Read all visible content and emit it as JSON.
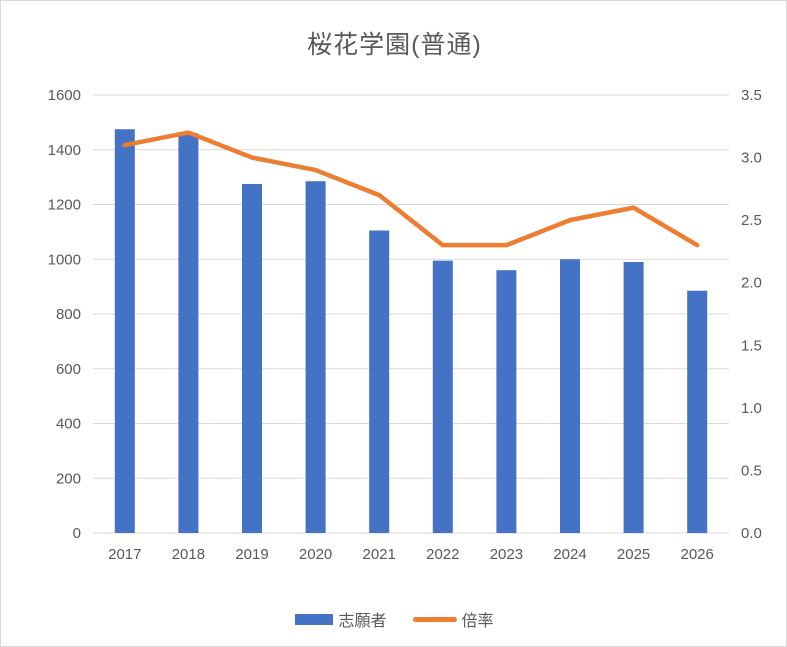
{
  "title": "桜花学園(普通)",
  "colors": {
    "bar": "#4472C4",
    "line": "#ED7D31",
    "grid": "#D9D9D9",
    "text": "#595959",
    "background": "#FFFFFF",
    "border": "#D9D9D9"
  },
  "legend": {
    "items": [
      {
        "label": "志願者",
        "type": "bar",
        "color": "#4472C4"
      },
      {
        "label": "倍率",
        "type": "line",
        "color": "#ED7D31"
      }
    ]
  },
  "chart_data": {
    "type": "bar+line",
    "title": "桜花学園(普通)",
    "categories": [
      "2017",
      "2018",
      "2019",
      "2020",
      "2021",
      "2022",
      "2023",
      "2024",
      "2025",
      "2026"
    ],
    "series": [
      {
        "name": "志願者",
        "type": "bar",
        "axis": "left",
        "color": "#4472C4",
        "values": [
          1475,
          1460,
          1275,
          1285,
          1105,
          995,
          960,
          1000,
          990,
          885
        ]
      },
      {
        "name": "倍率",
        "type": "line",
        "axis": "right",
        "color": "#ED7D31",
        "values": [
          3.1,
          3.2,
          3.0,
          2.9,
          2.7,
          2.3,
          2.3,
          2.5,
          2.6,
          2.3
        ]
      }
    ],
    "left_axis": {
      "min": 0,
      "max": 1600,
      "step": 200,
      "tick_labels": [
        "0",
        "200",
        "400",
        "600",
        "800",
        "1000",
        "1200",
        "1400",
        "1600"
      ]
    },
    "right_axis": {
      "min": 0,
      "max": 3.5,
      "step": 0.5,
      "tick_labels": [
        "0.0",
        "0.5",
        "1.0",
        "1.5",
        "2.0",
        "2.5",
        "3.0",
        "3.5"
      ]
    },
    "grid": true,
    "legend_position": "bottom",
    "xlabel": "",
    "ylabel": ""
  }
}
